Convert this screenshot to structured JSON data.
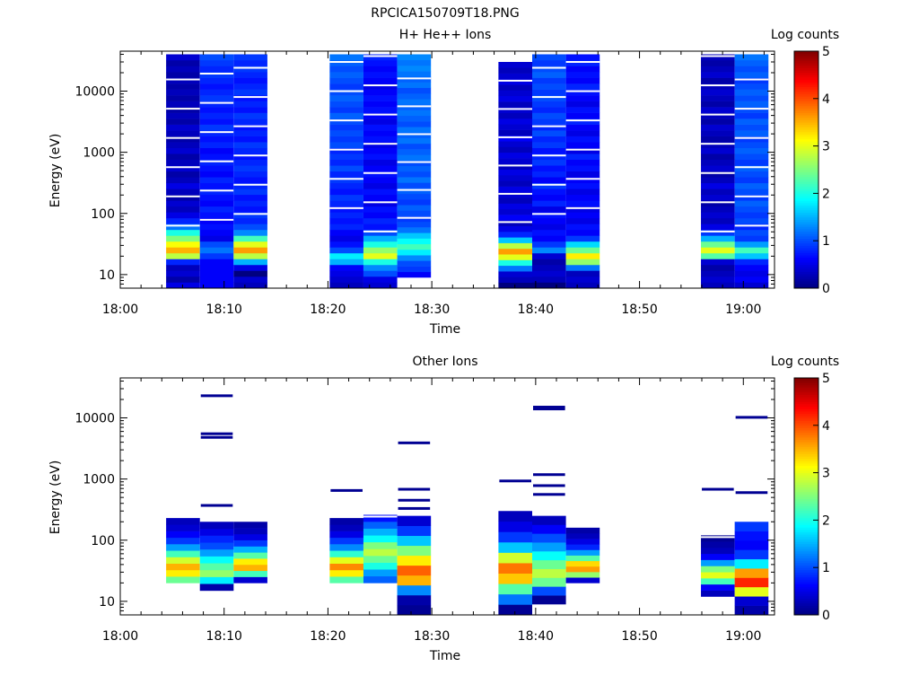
{
  "figure_title": "RPCICA150709T18.PNG",
  "colormap": [
    "#00007f",
    "#0000ff",
    "#007fff",
    "#00ffff",
    "#7fff7f",
    "#ffff00",
    "#ff7f00",
    "#ff0000",
    "#7f0000"
  ],
  "chart_data": [
    {
      "type": "heatmap",
      "title": "H+ He++ Ions",
      "xlabel": "Time",
      "ylabel": "Energy (eV)",
      "y_scale": "log",
      "ylim": [
        6,
        45000
      ],
      "xlim": [
        "18:00",
        "19:03"
      ],
      "x_ticks": [
        "18:00",
        "18:10",
        "18:20",
        "18:30",
        "18:40",
        "18:50",
        "19:00"
      ],
      "y_ticks": [
        "10",
        "100",
        "1000",
        "10000"
      ],
      "colorbar": {
        "label": "Log counts",
        "range": [
          0,
          5
        ],
        "ticks": [
          "0",
          "1",
          "2",
          "3",
          "4",
          "5"
        ]
      },
      "columns": [
        {
          "t_start": "18:04:25",
          "t_end": "18:07:40",
          "e_min": 6,
          "e_max": 40000,
          "counts": [
            0.5,
            0.2,
            0.4,
            0.3,
            0.8,
            2.8,
            3.5,
            3.1,
            2.5,
            2.0,
            1.2,
            0.8,
            0.5,
            0.3,
            0.4,
            0.2,
            0.3,
            0.5,
            0.3,
            0.2,
            0.4,
            0.3,
            0.2,
            0.4,
            0.3,
            0.2,
            0.3,
            0.4,
            0.2,
            0.3,
            0.2,
            0.3,
            0.2,
            0.3,
            0.2,
            0.3,
            0.2,
            0.3,
            0.2,
            0.4
          ]
        },
        {
          "t_start": "18:07:40",
          "t_end": "18:10:55",
          "e_min": 6,
          "e_max": 40000,
          "counts": [
            0.6,
            0.6,
            0.6,
            0.6,
            0.6,
            0.9,
            1.2,
            1.0,
            0.5,
            0.6,
            0.7,
            0.6,
            0.7,
            0.8,
            0.6,
            0.7,
            0.8,
            0.7,
            0.8,
            0.6,
            0.7,
            0.8,
            0.7,
            0.6,
            0.8,
            0.7,
            0.8,
            0.9,
            0.7,
            0.8,
            0.7,
            0.8,
            0.9,
            0.8,
            0.7,
            0.8,
            0.9,
            0.8,
            0.9,
            1.0
          ]
        },
        {
          "t_start": "18:10:55",
          "t_end": "18:14:10",
          "e_min": 6,
          "e_max": 40000,
          "counts": [
            0.3,
            0.4,
            0.0,
            0.5,
            1.5,
            2.8,
            3.6,
            3.0,
            2.2,
            1.3,
            1.0,
            0.8,
            0.9,
            0.7,
            0.8,
            0.7,
            0.9,
            0.8,
            0.7,
            0.8,
            0.9,
            0.8,
            0.7,
            0.8,
            0.9,
            0.7,
            0.8,
            0.7,
            0.8,
            0.9,
            0.7,
            0.8,
            0.7,
            0.9,
            0.8,
            0.7,
            0.8,
            0.9,
            0.8,
            0.9
          ]
        },
        {
          "t_start": "18:20:10",
          "t_end": "18:23:25",
          "e_min": 6,
          "e_max": 40000,
          "counts": [
            0.3,
            0.4,
            0.5,
            0.6,
            1.5,
            1.8,
            1.0,
            0.7,
            0.5,
            0.6,
            0.8,
            0.7,
            0.8,
            0.7,
            0.8,
            0.9,
            0.7,
            0.8,
            0.9,
            0.8,
            1.0,
            0.8,
            0.9,
            0.8,
            1.0,
            0.9,
            1.0,
            0.9,
            1.0,
            1.1,
            0.9,
            1.0,
            1.1,
            1.0,
            0.9,
            1.0,
            1.1,
            1.0,
            1.1,
            1.2
          ]
        },
        {
          "t_start": "18:23:25",
          "t_end": "18:26:40",
          "e_min": 6,
          "e_max": 40000,
          "counts": [
            0.4,
            0.5,
            1.0,
            1.3,
            2.0,
            3.0,
            2.6,
            2.0,
            1.5,
            1.0,
            0.7,
            0.8,
            0.6,
            0.7,
            0.5,
            0.6,
            0.7,
            0.5,
            0.6,
            0.7,
            0.6,
            0.5,
            0.7,
            0.6,
            0.5,
            0.7,
            0.6,
            0.7,
            0.5,
            0.6,
            0.7,
            0.6,
            0.7,
            0.6,
            0.5,
            0.6,
            0.7,
            0.6,
            0.7,
            0.8
          ]
        },
        {
          "t_start": "18:26:40",
          "t_end": "18:29:55",
          "e_min": 9,
          "e_max": 40000,
          "counts": [
            0.6,
            0.9,
            1.0,
            1.3,
            1.8,
            2.2,
            1.9,
            1.6,
            1.2,
            1.0,
            0.9,
            1.0,
            1.1,
            0.9,
            1.0,
            1.1,
            1.0,
            1.2,
            1.0,
            1.1,
            1.0,
            1.2,
            1.1,
            1.0,
            1.2,
            1.1,
            1.2,
            1.0,
            1.1,
            1.2,
            1.1,
            1.2,
            1.1,
            1.0,
            1.2,
            1.1,
            1.2,
            1.3,
            1.2,
            1.3
          ]
        },
        {
          "t_start": "18:36:25",
          "t_end": "18:39:40",
          "e_min": 6,
          "e_max": 30000,
          "counts": [
            0.0,
            0.3,
            0.4,
            1.2,
            2.0,
            3.0,
            3.6,
            2.8,
            1.6,
            0.8,
            0.5,
            0.3,
            0.6,
            0.4,
            0.5,
            0.3,
            0.4,
            0.5,
            0.3,
            0.4,
            0.5,
            0.3,
            0.4,
            0.5,
            0.3,
            0.4,
            0.6,
            0.3,
            0.4,
            0.5,
            0.3,
            0.4,
            0.3,
            0.5,
            0.4,
            0.3,
            0.5,
            0.4,
            0.3,
            0.4
          ]
        },
        {
          "t_start": "18:39:40",
          "t_end": "18:42:55",
          "e_min": 6,
          "e_max": 40000,
          "counts": [
            0.0,
            0.3,
            0.4,
            0.3,
            0.2,
            0.4,
            1.3,
            0.9,
            0.6,
            0.7,
            0.5,
            0.6,
            0.7,
            0.5,
            0.8,
            0.6,
            0.7,
            0.9,
            0.6,
            0.8,
            0.7,
            0.9,
            0.8,
            0.7,
            0.9,
            0.8,
            1.0,
            0.8,
            0.9,
            1.0,
            0.8,
            0.9,
            1.0,
            0.9,
            1.0,
            0.9,
            1.1,
            1.0,
            0.9,
            1.0
          ]
        },
        {
          "t_start": "18:42:55",
          "t_end": "18:46:10",
          "e_min": 6,
          "e_max": 40000,
          "counts": [
            0.3,
            0.4,
            0.3,
            1.2,
            2.6,
            3.2,
            2.4,
            1.7,
            0.9,
            0.6,
            0.7,
            0.5,
            0.6,
            0.5,
            0.7,
            0.6,
            0.5,
            0.7,
            0.6,
            0.5,
            0.7,
            0.6,
            0.8,
            0.5,
            0.6,
            0.7,
            0.5,
            0.6,
            0.8,
            0.6,
            0.7,
            0.5,
            0.6,
            0.7,
            0.8,
            0.6,
            0.7,
            0.6,
            0.8,
            0.7
          ]
        },
        {
          "t_start": "18:55:55",
          "t_end": "18:59:10",
          "e_min": 6,
          "e_max": 40000,
          "counts": [
            0.3,
            0.4,
            0.3,
            0.2,
            0.4,
            2.3,
            3.0,
            2.4,
            1.5,
            0.9,
            0.5,
            0.3,
            0.4,
            0.3,
            0.2,
            0.4,
            0.3,
            0.5,
            0.3,
            0.2,
            0.4,
            0.3,
            0.2,
            0.4,
            0.3,
            0.2,
            0.3,
            0.4,
            0.2,
            0.3,
            0.4,
            0.2,
            0.3,
            0.4,
            0.3,
            0.2,
            0.4,
            0.3,
            0.2,
            0.3
          ]
        },
        {
          "t_start": "18:59:10",
          "t_end": "19:02:25",
          "e_min": 6,
          "e_max": 40000,
          "counts": [
            0.4,
            0.6,
            0.5,
            0.6,
            0.8,
            1.6,
            2.2,
            1.4,
            0.9,
            1.0,
            0.8,
            1.0,
            0.9,
            1.0,
            1.1,
            0.9,
            1.0,
            1.1,
            0.9,
            1.0,
            1.1,
            0.9,
            1.0,
            1.1,
            1.0,
            0.9,
            1.1,
            1.0,
            1.1,
            0.9,
            1.0,
            1.1,
            1.0,
            1.1,
            1.0,
            0.9,
            1.1,
            1.0,
            1.1,
            1.2
          ]
        }
      ]
    },
    {
      "type": "heatmap",
      "title": "Other Ions",
      "xlabel": "Time",
      "ylabel": "Energy (eV)",
      "y_scale": "log",
      "ylim": [
        6,
        45000
      ],
      "xlim": [
        "18:00",
        "19:03"
      ],
      "x_ticks": [
        "18:00",
        "18:10",
        "18:20",
        "18:30",
        "18:40",
        "18:50",
        "19:00"
      ],
      "y_ticks": [
        "10",
        "100",
        "1000",
        "10000"
      ],
      "colorbar": {
        "label": "Log counts",
        "range": [
          0,
          5
        ],
        "ticks": [
          "0",
          "1",
          "2",
          "3",
          "4",
          "5"
        ]
      },
      "columns": [
        {
          "t_start": "18:04:25",
          "t_end": "18:07:40",
          "e_min": 20,
          "e_max": 230,
          "counts": [
            2.4,
            3.2,
            3.5,
            2.9,
            2.2,
            1.4,
            0.9,
            0.6,
            0.4,
            0.3
          ]
        },
        {
          "t_start": "18:07:40",
          "t_end": "18:10:55",
          "e_min": 15,
          "e_max": 200,
          "counts": [
            0.2,
            1.8,
            2.6,
            2.3,
            1.9,
            1.4,
            1.0,
            0.8,
            0.5,
            0.3
          ]
        },
        {
          "t_start": "18:10:55",
          "t_end": "18:14:10",
          "e_min": 20,
          "e_max": 200,
          "counts": [
            0.4,
            2.2,
            3.5,
            3.2,
            2.3,
            1.5,
            0.9,
            0.5,
            0.3,
            0.2
          ]
        },
        {
          "t_start": "18:20:10",
          "t_end": "18:23:25",
          "e_min": 20,
          "e_max": 230,
          "counts": [
            2.3,
            3.2,
            3.7,
            3.0,
            2.1,
            1.3,
            0.9,
            0.5,
            0.3,
            0.2
          ]
        },
        {
          "t_start": "18:23:25",
          "t_end": "18:26:40",
          "e_min": 20,
          "e_max": 260,
          "counts": [
            1.1,
            1.4,
            2.0,
            2.4,
            2.8,
            2.5,
            1.9,
            1.5,
            1.1,
            0.7
          ]
        },
        {
          "t_start": "18:26:40",
          "t_end": "18:29:55",
          "e_min": 6,
          "e_max": 250,
          "counts": [
            0.1,
            0.2,
            1.3,
            3.5,
            3.9,
            3.2,
            2.5,
            1.6,
            0.9,
            0.4
          ]
        },
        {
          "t_start": "18:36:25",
          "t_end": "18:39:40",
          "e_min": 6,
          "e_max": 300,
          "counts": [
            0.1,
            1.2,
            2.3,
            3.4,
            3.8,
            2.9,
            1.6,
            0.9,
            0.5,
            0.3
          ]
        },
        {
          "t_start": "18:39:40",
          "t_end": "18:42:55",
          "e_min": 9,
          "e_max": 250,
          "counts": [
            0.1,
            1.0,
            2.4,
            2.8,
            2.4,
            1.9,
            1.4,
            1.0,
            0.6,
            0.3
          ]
        },
        {
          "t_start": "18:42:55",
          "t_end": "18:46:10",
          "e_min": 20,
          "e_max": 160,
          "counts": [
            0.4,
            2.6,
            3.6,
            3.3,
            2.3,
            1.4,
            0.8,
            0.5,
            0.3,
            0.2
          ]
        },
        {
          "t_start": "18:55:55",
          "t_end": "18:59:10",
          "e_min": 12,
          "e_max": 120,
          "counts": [
            0.3,
            0.6,
            2.2,
            3.0,
            2.5,
            1.4,
            0.6,
            0.3,
            0.2,
            0.1
          ]
        },
        {
          "t_start": "18:59:10",
          "t_end": "19:02:25",
          "e_min": 6,
          "e_max": 200,
          "counts": [
            0.2,
            0.4,
            3.0,
            4.2,
            3.6,
            1.8,
            0.9,
            0.6,
            0.7,
            0.9
          ]
        }
      ],
      "sparse_lines": [
        {
          "t_start": "18:07:40",
          "t_end": "18:10:55",
          "energies": [
            23000,
            5500,
            4800,
            370
          ]
        },
        {
          "t_start": "18:20:10",
          "t_end": "18:23:25",
          "energies": [
            650
          ]
        },
        {
          "t_start": "18:26:40",
          "t_end": "18:29:55",
          "energies": [
            3900,
            680,
            450,
            330
          ]
        },
        {
          "t_start": "18:36:25",
          "t_end": "18:39:40",
          "energies": [
            930
          ]
        },
        {
          "t_start": "18:39:40",
          "t_end": "18:42:55",
          "energies": [
            15000,
            14000,
            1180,
            780,
            560
          ]
        },
        {
          "t_start": "18:55:55",
          "t_end": "18:59:10",
          "energies": [
            680
          ]
        },
        {
          "t_start": "18:59:10",
          "t_end": "19:02:25",
          "energies": [
            10200,
            600
          ]
        }
      ]
    }
  ]
}
